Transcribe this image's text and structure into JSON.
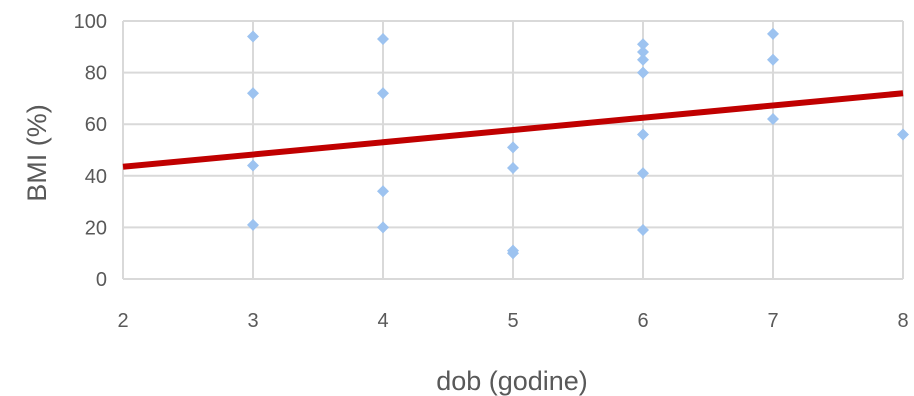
{
  "chart_data": {
    "type": "scatter",
    "title": "",
    "xlabel": "dob (godine)",
    "ylabel": "BMI (%)",
    "xlim": [
      2,
      8
    ],
    "ylim": [
      0,
      100
    ],
    "xticks": [
      "2",
      "3",
      "4",
      "5",
      "6",
      "7",
      "8"
    ],
    "yticks": [
      "0",
      "20",
      "40",
      "60",
      "80",
      "100"
    ],
    "grid": true,
    "legend": "none",
    "series": [
      {
        "marker": "diamond",
        "color": "#9dc3f0",
        "points": [
          {
            "x": 3,
            "y": 94
          },
          {
            "x": 3,
            "y": 72
          },
          {
            "x": 3,
            "y": 44
          },
          {
            "x": 3,
            "y": 21
          },
          {
            "x": 4,
            "y": 93
          },
          {
            "x": 4,
            "y": 72
          },
          {
            "x": 4,
            "y": 34
          },
          {
            "x": 4,
            "y": 20
          },
          {
            "x": 5,
            "y": 51
          },
          {
            "x": 5,
            "y": 43
          },
          {
            "x": 5,
            "y": 11
          },
          {
            "x": 5,
            "y": 10
          },
          {
            "x": 6,
            "y": 91
          },
          {
            "x": 6,
            "y": 88
          },
          {
            "x": 6,
            "y": 85
          },
          {
            "x": 6,
            "y": 80
          },
          {
            "x": 6,
            "y": 56
          },
          {
            "x": 6,
            "y": 41
          },
          {
            "x": 6,
            "y": 19
          },
          {
            "x": 7,
            "y": 95
          },
          {
            "x": 7,
            "y": 85
          },
          {
            "x": 7,
            "y": 62
          },
          {
            "x": 8,
            "y": 56
          }
        ]
      }
    ],
    "trendline": {
      "type": "linear",
      "color": "#c00000",
      "points": [
        {
          "x": 2,
          "y": 43.5
        },
        {
          "x": 8,
          "y": 72
        }
      ]
    }
  }
}
